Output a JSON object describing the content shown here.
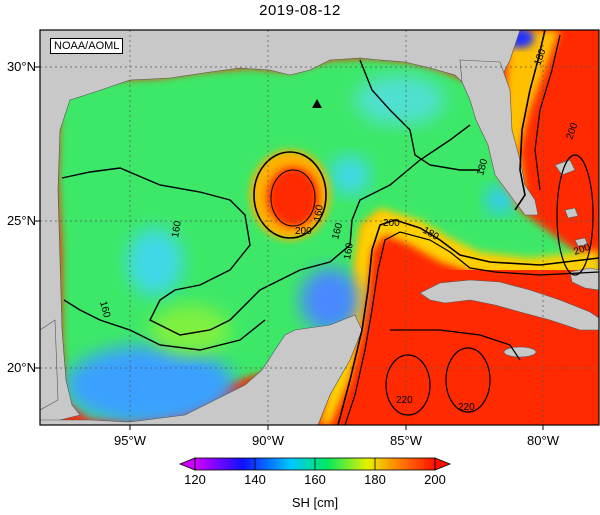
{
  "title": "2019-08-12",
  "credit": "NOAA/AOML",
  "longitude_ticks": [
    "95°W",
    "90°W",
    "85°W",
    "80°W"
  ],
  "latitude_ticks": [
    "30°N",
    "25°N",
    "20°N"
  ],
  "colorbar": {
    "ticks": [
      "120",
      "140",
      "160",
      "180",
      "200"
    ],
    "label": "SH [cm]",
    "colors": [
      "#d000ff",
      "#1010ff",
      "#00c8ff",
      "#00e860",
      "#e8f000",
      "#ff8000",
      "#ff1000"
    ]
  },
  "contour_labels": [
    "160",
    "160",
    "160",
    "160",
    "200",
    "160",
    "180",
    "200",
    "180",
    "200",
    "220",
    "220",
    "180",
    "200"
  ],
  "colors": {
    "land": "#c8c8c8",
    "gulf_base": "#3ee868",
    "warm": "#ff2a00",
    "cold": "#3aa0ff",
    "marker": "#000000"
  },
  "marker": "black triangle"
}
